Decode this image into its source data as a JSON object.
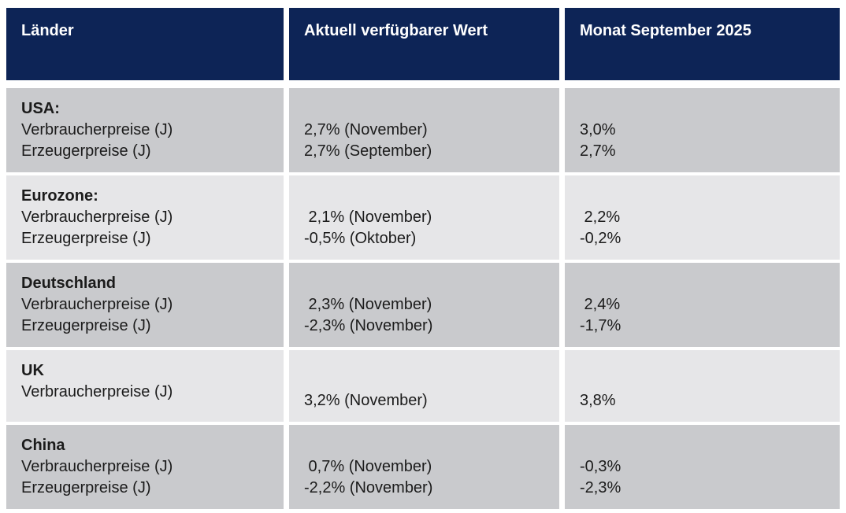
{
  "colors": {
    "page_bg": "#ffffff",
    "header_bg": "#0d2456",
    "header_text": "#ffffff",
    "row_dark_bg": "#c9cacd",
    "row_light_bg": "#e6e6e8",
    "body_text": "#1b1b1b"
  },
  "chart_data": {
    "type": "table",
    "title": "",
    "columns": [
      "Länder",
      "Aktuell verfügbarer Wert",
      "Monat September 2025"
    ],
    "unit": "%",
    "rows": [
      {
        "country": "USA:",
        "indicators": [
          "Verbraucherpreise (J)",
          "Erzeugerpreise (J)"
        ],
        "aktuell": [
          "2,7% (November)",
          "2,7% (September)"
        ],
        "september": [
          "3,0%",
          "2,7%"
        ]
      },
      {
        "country": "Eurozone:",
        "indicators": [
          "Verbraucherpreise (J)",
          "Erzeugerpreise (J)"
        ],
        "aktuell": [
          " 2,1% (November)",
          "-0,5% (Oktober)"
        ],
        "september": [
          " 2,2%",
          "-0,2%"
        ]
      },
      {
        "country": "Deutschland",
        "indicators": [
          "Verbraucherpreise (J)",
          "Erzeugerpreise (J)"
        ],
        "aktuell": [
          " 2,3% (November)",
          "-2,3% (November)"
        ],
        "september": [
          " 2,4%",
          "-1,7%"
        ]
      },
      {
        "country": "UK",
        "indicators": [
          "Verbraucherpreise (J)"
        ],
        "aktuell": [
          "3,2% (November)"
        ],
        "september": [
          "3,8%"
        ]
      },
      {
        "country": "China",
        "indicators": [
          "Verbraucherpreise (J)",
          "Erzeugerpreise (J)"
        ],
        "aktuell": [
          " 0,7% (November)",
          "-2,2% (November)"
        ],
        "september": [
          "-0,3%",
          "-2,3%"
        ]
      }
    ]
  }
}
